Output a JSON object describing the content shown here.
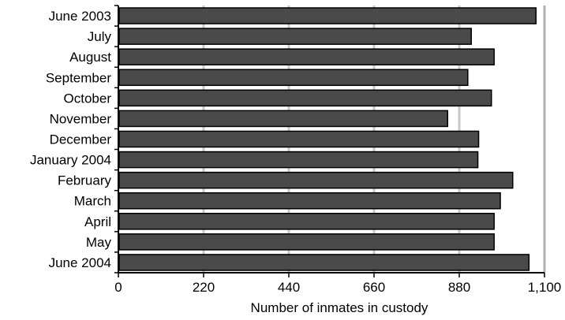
{
  "chart_data": {
    "type": "bar",
    "orientation": "horizontal",
    "title": "",
    "xlabel": "Number of inmates in custody",
    "ylabel": "",
    "categories": [
      "June 2003",
      "July",
      "August",
      "September",
      "October",
      "November",
      "December",
      "January 2004",
      "February",
      "March",
      "April",
      "May",
      "June 2004"
    ],
    "values": [
      1078,
      911,
      970,
      902,
      963,
      850,
      930,
      928,
      1018,
      986,
      970,
      970,
      1060
    ],
    "xlim": [
      0,
      1100
    ],
    "xticks": [
      0,
      220,
      440,
      660,
      880,
      1100
    ],
    "xtick_labels": [
      "0",
      "220",
      "440",
      "660",
      "880",
      "1,100"
    ],
    "grid": true,
    "bar_color": "#4a4a4a"
  }
}
